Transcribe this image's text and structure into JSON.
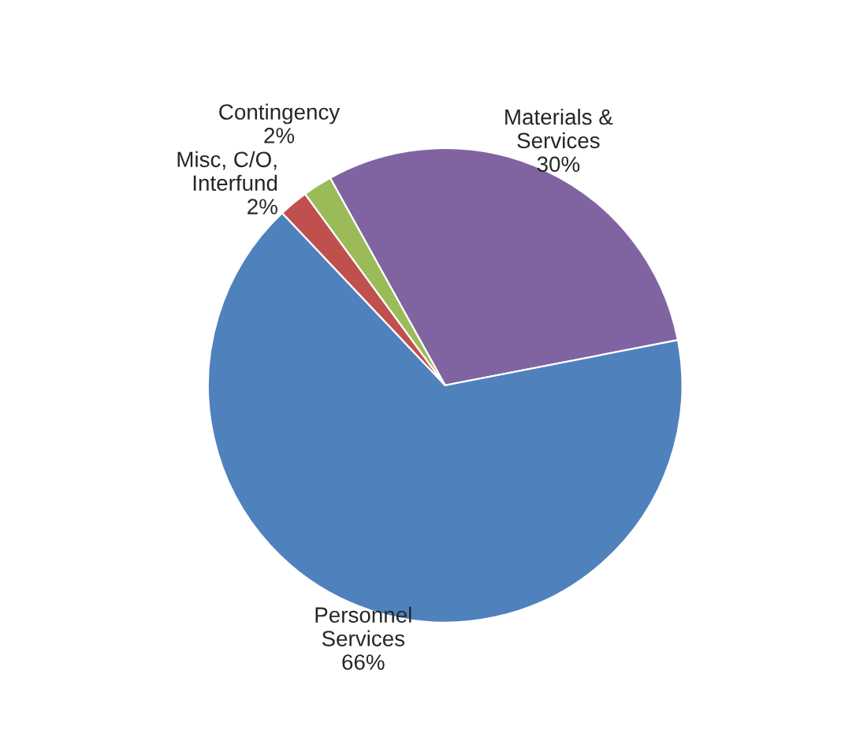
{
  "chart_data": {
    "type": "pie",
    "categories": [
      "Materials &\nServices",
      "Personnel\nServices",
      "Misc, C/O,\nInterfund",
      "Contingency"
    ],
    "values": [
      30,
      66,
      2,
      2
    ],
    "value_labels": [
      "30%",
      "66%",
      "2%",
      "2%"
    ],
    "colors": [
      "#8064a2",
      "#4f81bd",
      "#c0504d",
      "#9bbb59"
    ]
  }
}
